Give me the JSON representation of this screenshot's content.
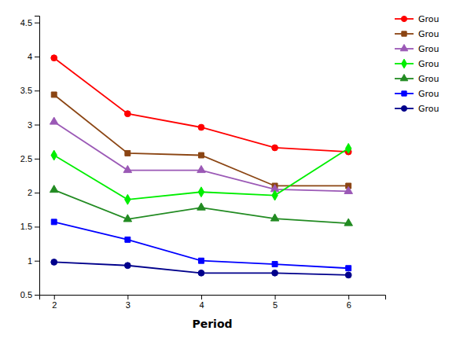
{
  "chart_data": {
    "type": "line",
    "xlabel": "Period",
    "x": [
      2,
      3,
      4,
      5,
      6
    ],
    "series": [
      {
        "name": "Grou",
        "color": "#FF0000",
        "marker": "circle",
        "values": [
          3.98,
          3.16,
          2.96,
          2.66,
          2.6
        ]
      },
      {
        "name": "Grou",
        "color": "#8B4513",
        "marker": "square",
        "values": [
          3.44,
          2.58,
          2.55,
          2.1,
          2.1
        ]
      },
      {
        "name": "Grou",
        "color": "#9B59B6",
        "marker": "triangle",
        "values": [
          3.04,
          2.33,
          2.33,
          2.05,
          2.02
        ]
      },
      {
        "name": "Grou",
        "color": "#00EE00",
        "marker": "diamond",
        "values": [
          2.55,
          1.9,
          2.01,
          1.96,
          2.65
        ]
      },
      {
        "name": "Grou",
        "color": "#228B22",
        "marker": "triangle",
        "values": [
          2.04,
          1.61,
          1.78,
          1.62,
          1.55
        ]
      },
      {
        "name": "Grou",
        "color": "#0000FF",
        "marker": "square",
        "values": [
          1.57,
          1.31,
          1.0,
          0.95,
          0.89
        ]
      },
      {
        "name": "Grou",
        "color": "#00008B",
        "marker": "circle",
        "values": [
          0.98,
          0.93,
          0.82,
          0.82,
          0.79
        ]
      }
    ],
    "xlim": [
      1.8,
      6.5
    ],
    "ylim": [
      0.5,
      4.6
    ],
    "xticks": [
      2,
      3,
      4,
      5,
      6
    ],
    "yticks": [
      0.5,
      1,
      1.5,
      2,
      2.5,
      3,
      3.5,
      4,
      4.5
    ],
    "legend": "upper right"
  }
}
